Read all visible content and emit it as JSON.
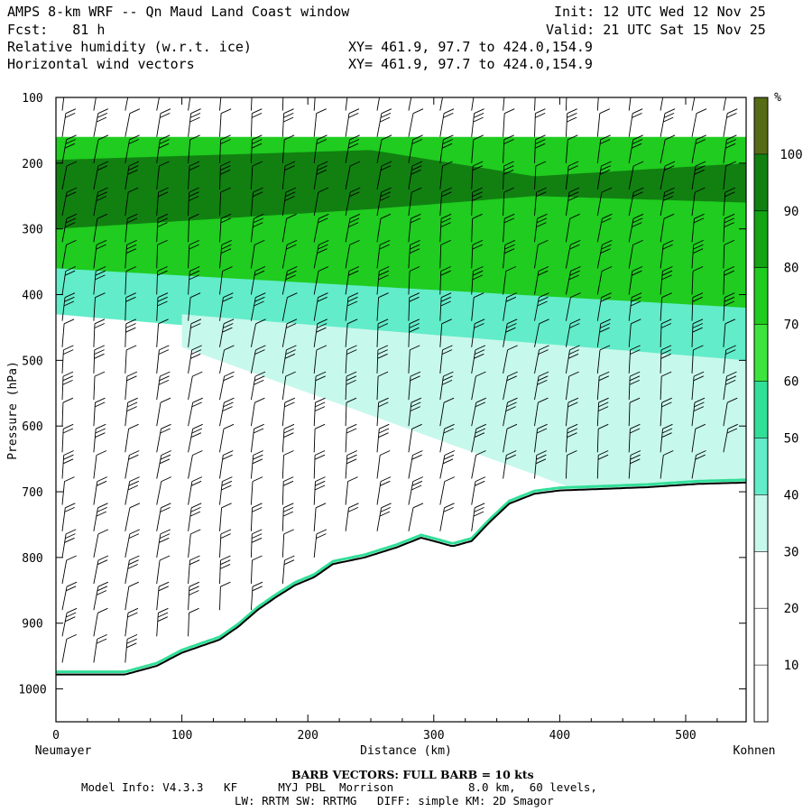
{
  "header": {
    "title": "AMPS 8-km WRF -- Qn Maud Land Coast window",
    "init": "Init: 12 UTC Wed 12 Nov 25",
    "fcst": "Fcst:   81 h",
    "valid": "Valid: 21 UTC Sat 15 Nov 25",
    "field1": "Relative humidity (w.r.t. ice)",
    "field1_xy": "XY= 461.9, 97.7 to 424.0,154.9",
    "field2": "Horizontal wind vectors",
    "field2_xy": "XY= 461.9, 97.7 to 424.0,154.9"
  },
  "footer": {
    "barb_note": "BARB VECTORS:  FULL BARB = 10 kts",
    "model_line1": "Model Info: V4.3.3   KF      MYJ PBL  Morrison           8.0 km,  60 levels,",
    "model_line2": "LW: RRTM SW: RRTMG   DIFF: simple KM: 2D Smagor"
  },
  "chart_data": {
    "type": "cross-section",
    "title": "Relative humidity (w.r.t. ice) and horizontal wind vectors",
    "xlabel": "Distance (km)",
    "ylabel": "Pressure (hPa)",
    "xlim": [
      0,
      548
    ],
    "ylim": [
      1050,
      100
    ],
    "x_ticks": [
      "0",
      "100",
      "200",
      "300",
      "400",
      "500"
    ],
    "x_tick_values": [
      0,
      100,
      200,
      300,
      400,
      500
    ],
    "y_ticks": [
      "100",
      "200",
      "300",
      "400",
      "500",
      "600",
      "700",
      "800",
      "900",
      "1000"
    ],
    "y_tick_values": [
      100,
      200,
      300,
      400,
      500,
      600,
      700,
      800,
      900,
      1000
    ],
    "left_endpoint": "Neumayer",
    "right_endpoint": "Kohnen",
    "colorbar": {
      "unit": "%",
      "levels": [
        "10",
        "20",
        "30",
        "40",
        "50",
        "60",
        "70",
        "80",
        "90",
        "100"
      ],
      "level_values": [
        10,
        20,
        30,
        40,
        50,
        60,
        70,
        80,
        90,
        100
      ],
      "colors": [
        "#ffffff",
        "#ffffff",
        "#ffffff",
        "#c7f8ec",
        "#62ecc9",
        "#31df98",
        "#3ee43e",
        "#1fcc1f",
        "#14a414",
        "#118011",
        "#556b16"
      ]
    },
    "terrain_surface_pressure": {
      "x": [
        0,
        55,
        80,
        100,
        115,
        130,
        145,
        160,
        175,
        190,
        205,
        220,
        245,
        270,
        290,
        300,
        315,
        330,
        345,
        360,
        380,
        400,
        430,
        470,
        510,
        548
      ],
      "p": [
        978,
        978,
        965,
        945,
        935,
        925,
        905,
        880,
        860,
        842,
        830,
        810,
        800,
        785,
        770,
        775,
        783,
        775,
        745,
        718,
        703,
        698,
        696,
        693,
        688,
        686
      ]
    },
    "rh_layers": [
      {
        "name": "upper-moist-band",
        "rh": 75,
        "x": [
          0,
          548
        ],
        "p_top": [
          160,
          160
        ],
        "p_bottom": [
          380,
          470
        ]
      },
      {
        "name": "core-moist-band",
        "rh": 92,
        "x": [
          0,
          250,
          380,
          548
        ],
        "p_top": [
          195,
          180,
          220,
          200
        ],
        "p_bottom": [
          300,
          270,
          250,
          260
        ]
      },
      {
        "name": "mid-band",
        "rh": 45,
        "x": [
          0,
          548
        ],
        "p_top": [
          360,
          420
        ],
        "p_bottom": [
          430,
          520
        ]
      },
      {
        "name": "lower-wedge",
        "rh": 35,
        "x": [
          100,
          548
        ],
        "p_top": [
          430,
          500
        ],
        "p_bottom": [
          480,
          790
        ]
      }
    ],
    "wind_barbs": {
      "columns_km": [
        5,
        30,
        55,
        80,
        105,
        130,
        155,
        180,
        205,
        230,
        255,
        280,
        305,
        330,
        355,
        380,
        405,
        430,
        455,
        480,
        505,
        530
      ],
      "levels_hpa": [
        120,
        160,
        200,
        240,
        280,
        320,
        360,
        400,
        440,
        480,
        520,
        560,
        600,
        640,
        680,
        720,
        760,
        800,
        840,
        880,
        920,
        960
      ],
      "typical_speed_kts": 25,
      "direction": "mostly from south-east at upper levels, weakening near surface"
    }
  }
}
